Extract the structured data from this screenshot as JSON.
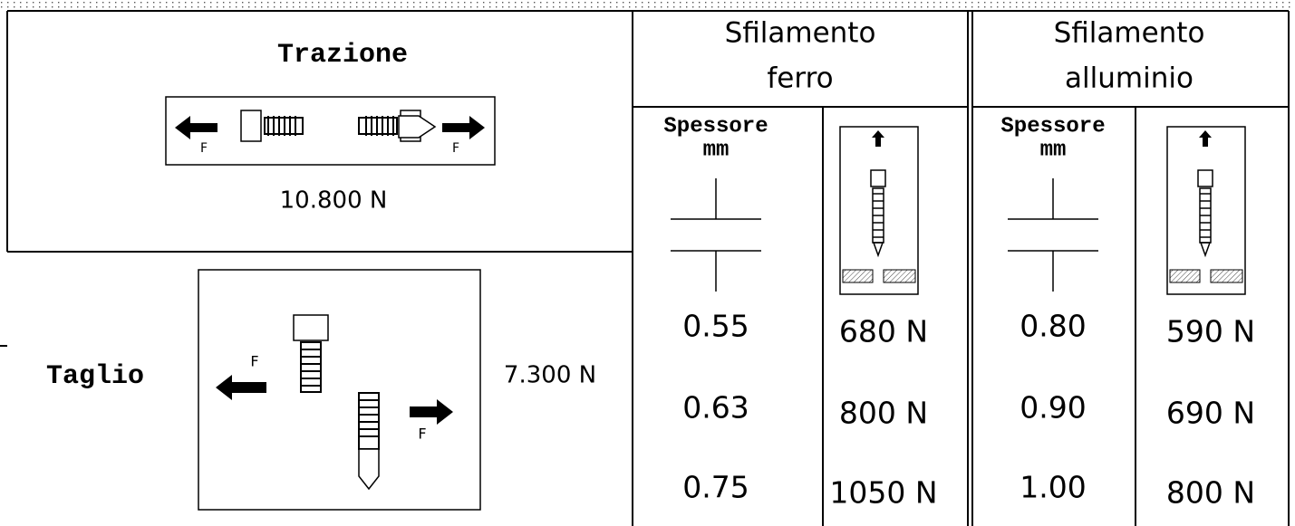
{
  "trazione": {
    "title": "Trazione",
    "value": "10.800 N"
  },
  "taglio": {
    "title": "Taglio",
    "value": "7.300 N"
  },
  "force_label": "F",
  "sfilamento": [
    {
      "title": [
        "Sfilamento",
        "ferro"
      ],
      "thickness_header": [
        "Spessore",
        "mm"
      ],
      "rows": [
        [
          "0.55",
          "680 N"
        ],
        [
          "0.63",
          "800 N"
        ],
        [
          "0.75",
          "1050 N"
        ]
      ]
    },
    {
      "title": [
        "Sfilamento",
        "alluminio"
      ],
      "thickness_header": [
        "Spessore",
        "mm"
      ],
      "rows": [
        [
          "0.80",
          "590 N"
        ],
        [
          "0.90",
          "690 N"
        ],
        [
          "1.00",
          "800 N"
        ]
      ]
    }
  ]
}
